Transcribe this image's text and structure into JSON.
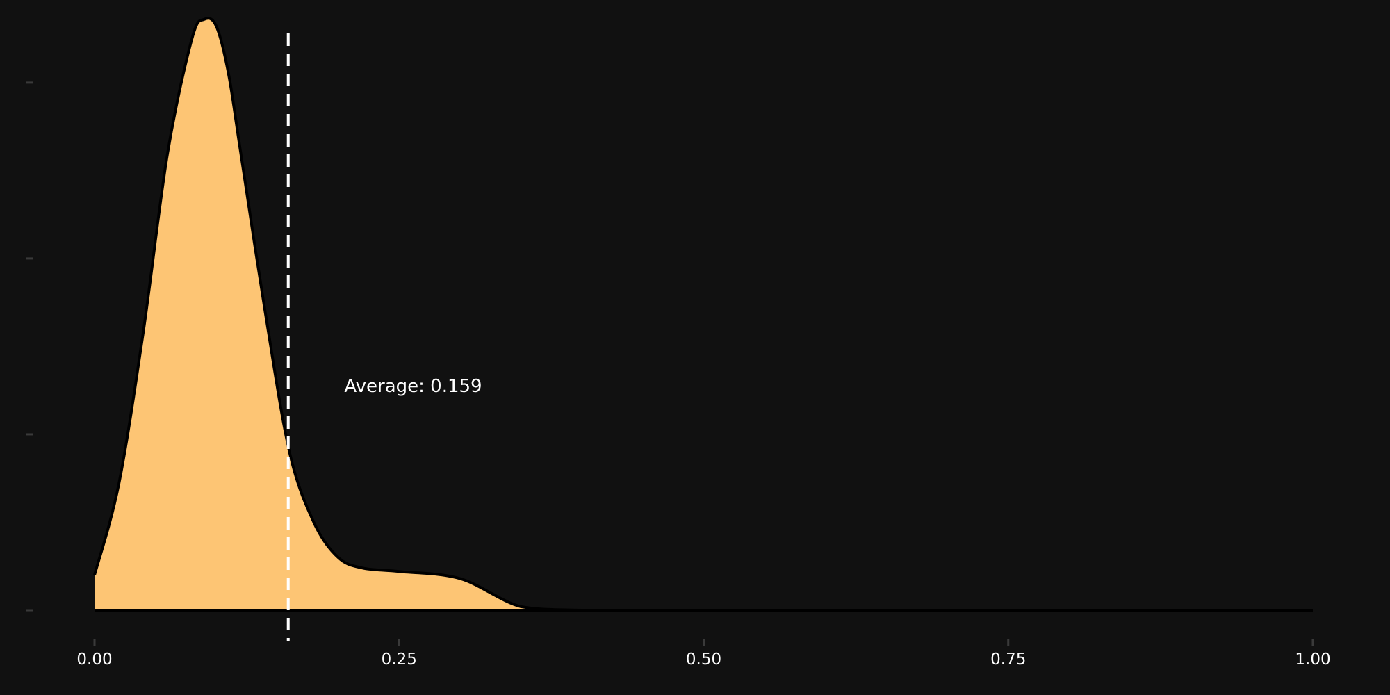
{
  "chart_data": {
    "type": "area",
    "title": "",
    "xlabel": "",
    "ylabel": "",
    "xlim": [
      0,
      1
    ],
    "ylim": [
      0,
      3.45
    ],
    "x_ticks": [
      0.0,
      0.25,
      0.5,
      0.75,
      1.0
    ],
    "x_tick_labels": [
      "0.00",
      "0.25",
      "0.50",
      "0.75",
      "1.00"
    ],
    "y_ticks": [
      0,
      1,
      2,
      3
    ],
    "y_tick_labels": [
      "",
      "",
      "",
      ""
    ],
    "grid": false,
    "series": [
      {
        "x": [
          0.0,
          0.02,
          0.04,
          0.06,
          0.08,
          0.09,
          0.1,
          0.11,
          0.12,
          0.14,
          0.16,
          0.18,
          0.2,
          0.22,
          0.25,
          0.3,
          0.35,
          0.4,
          0.45,
          0.5,
          0.55,
          0.6,
          0.7,
          0.8,
          0.9,
          1.0
        ],
        "y": [
          0.2,
          0.72,
          1.58,
          2.6,
          3.25,
          3.36,
          3.32,
          3.05,
          2.6,
          1.7,
          0.9,
          0.5,
          0.3,
          0.24,
          0.22,
          0.18,
          0.02,
          0.0,
          0.0,
          0.0,
          0.0,
          0.0,
          0.0,
          0.0,
          0.0,
          0.0
        ],
        "color": "#fdc574"
      }
    ],
    "vline": {
      "x": 0.159,
      "color": "#ffffff",
      "style": "dashed"
    },
    "annotation": {
      "text": "Average: 0.159",
      "x": 0.205,
      "y": 1.24
    },
    "background": "#111111"
  }
}
